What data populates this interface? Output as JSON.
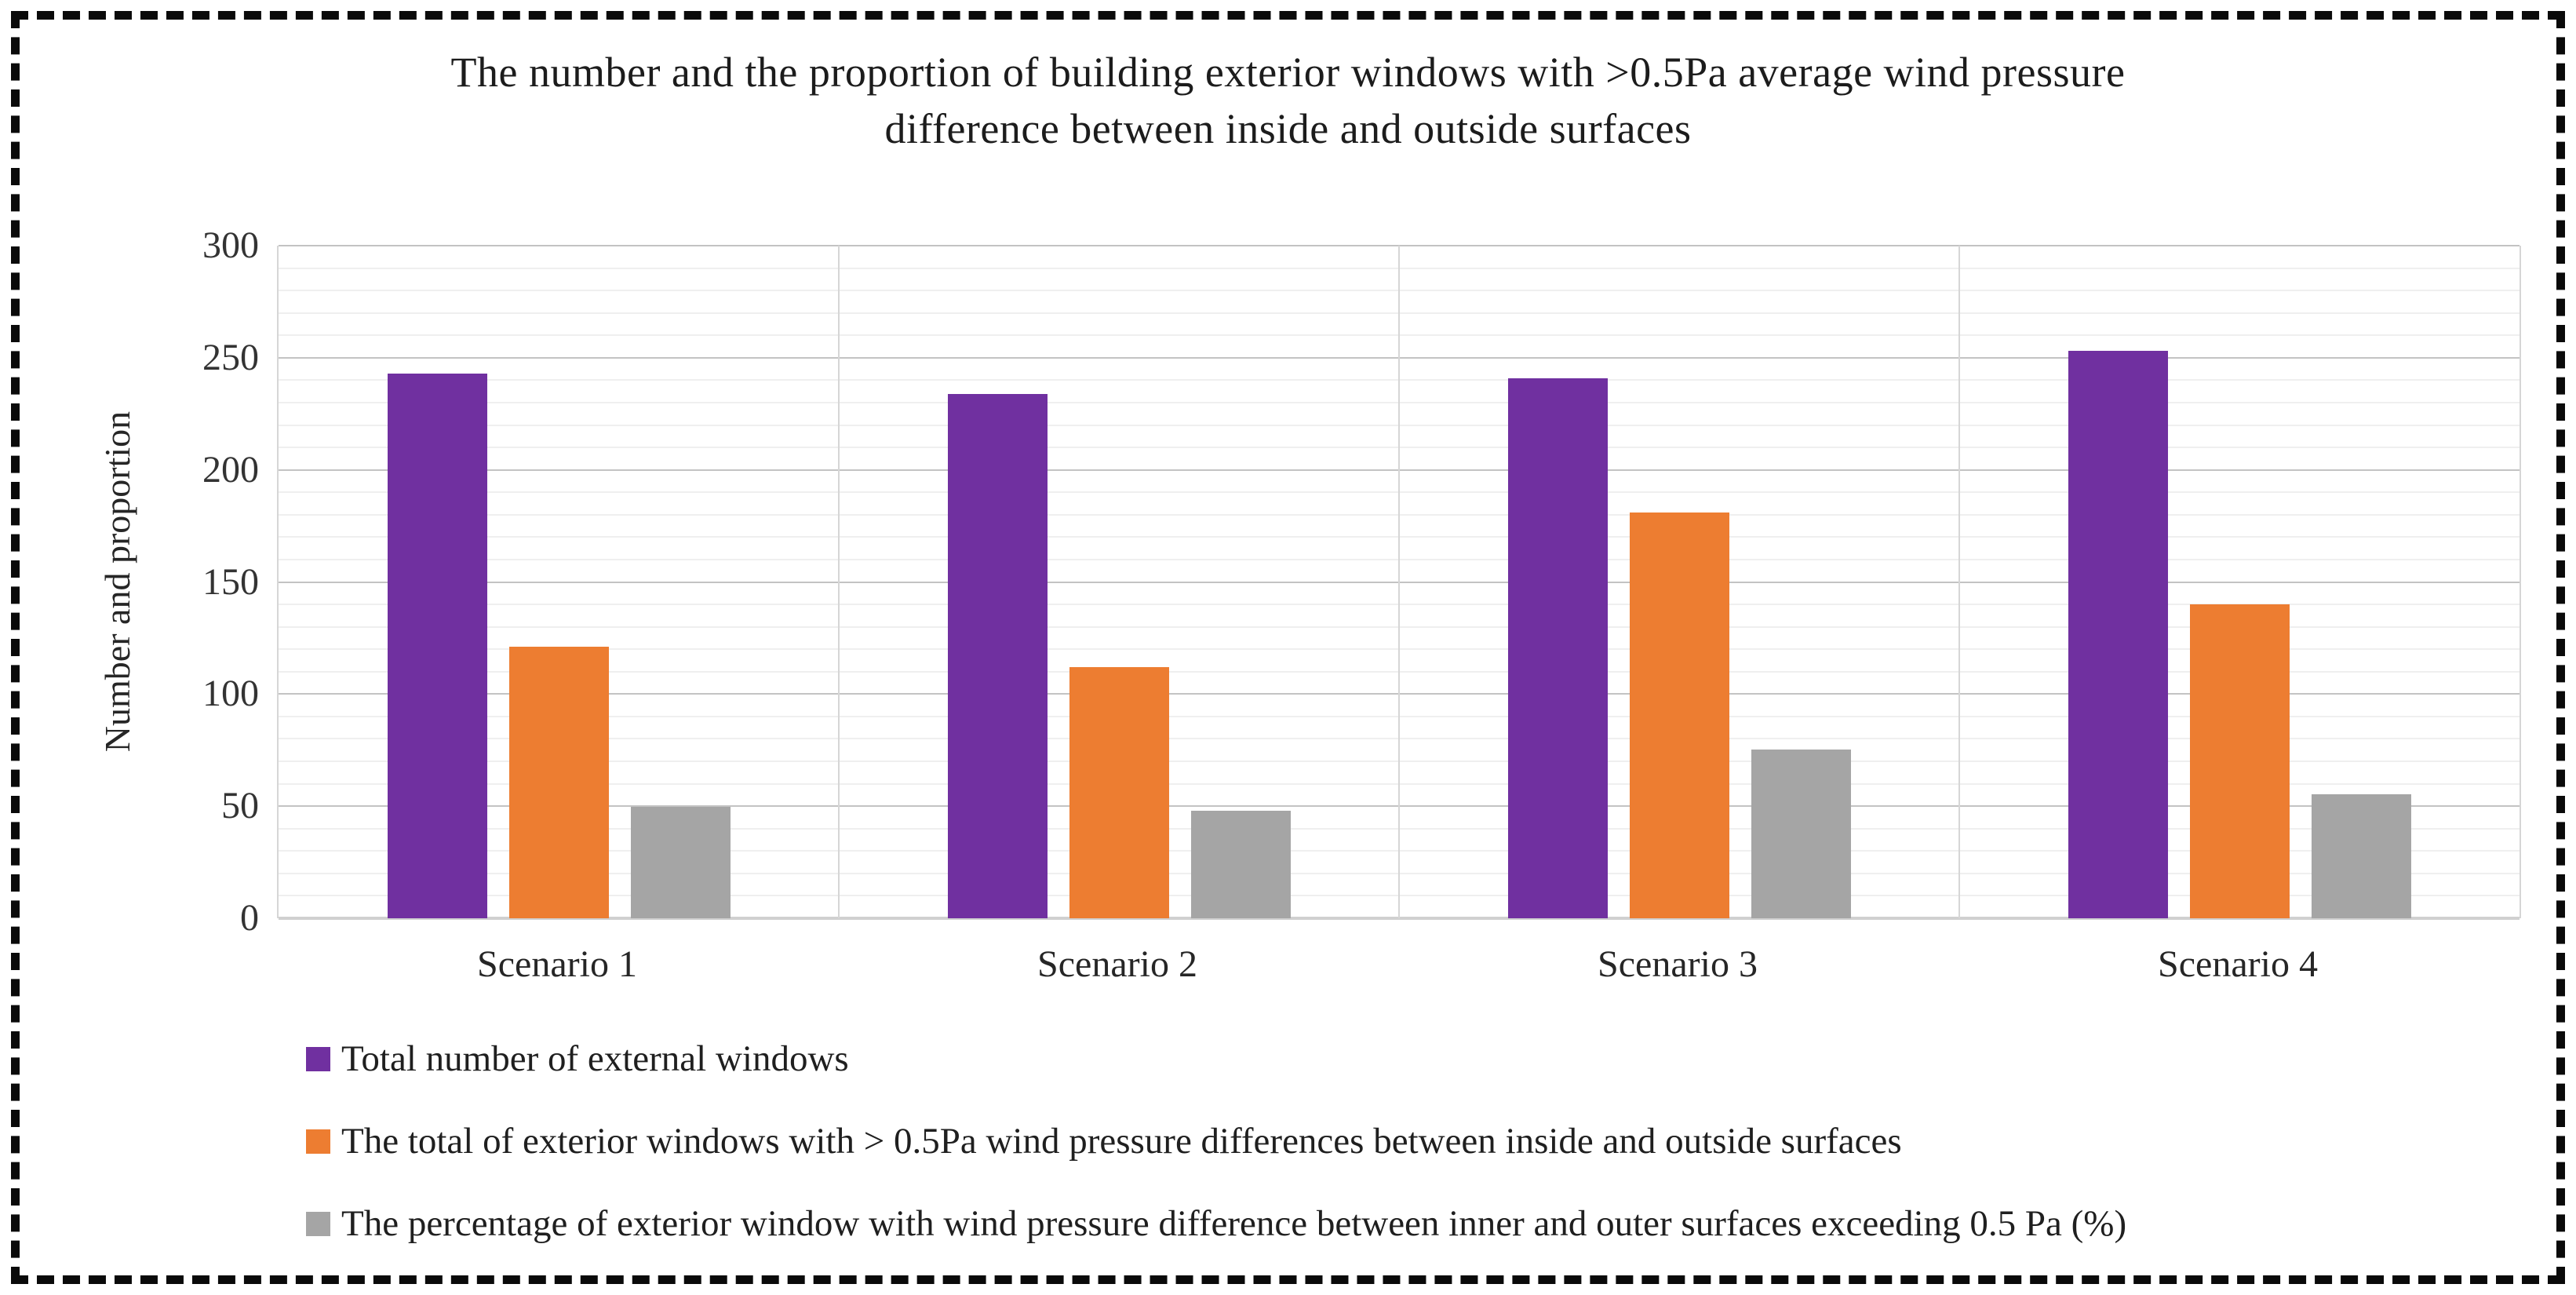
{
  "figure": {
    "title_line1": "The number and the proportion of building exterior windows  with >0.5Pa average wind pressure",
    "title_line2": "difference between inside and outside surfaces"
  },
  "chart_data": {
    "type": "bar",
    "title": "The number and the proportion of building exterior windows with >0.5Pa average wind pressure difference between inside and outside surfaces",
    "xlabel": "",
    "ylabel": "Number and proportion",
    "ylim": [
      0,
      300
    ],
    "ytick_step": 50,
    "minor_gridline_step": 10,
    "yticks": [
      0,
      50,
      100,
      150,
      200,
      250,
      300
    ],
    "grid": {
      "horizontal_major": true,
      "horizontal_minor": true,
      "vertical_category_separators": true
    },
    "legend_position": "bottom-left",
    "categories": [
      "Scenario 1",
      "Scenario 2",
      "Scenario 3",
      "Scenario 4"
    ],
    "series": [
      {
        "name": "Total number of external windows",
        "color": "#7030A0",
        "values": [
          243,
          234,
          241,
          253
        ]
      },
      {
        "name": "The total of exterior windows with  > 0.5Pa wind pressure differences between inside and outside surfaces",
        "color": "#ED7D31",
        "values": [
          121,
          112,
          181,
          140
        ]
      },
      {
        "name": "The percentage of exterior window with wind pressure difference between inner and outer surfaces exceeding 0.5 Pa (%)",
        "color": "#A5A5A5",
        "values": [
          49.8,
          47.9,
          75.1,
          55.3
        ]
      }
    ]
  },
  "colors": {
    "background": "#FFFFFF",
    "frame_dash": "#0A0A0A",
    "grid_minor": "#EFEFEF",
    "grid_major": "#C3C3C3",
    "axis_line": "#D0D0D0",
    "text": "#1F1F1F"
  }
}
